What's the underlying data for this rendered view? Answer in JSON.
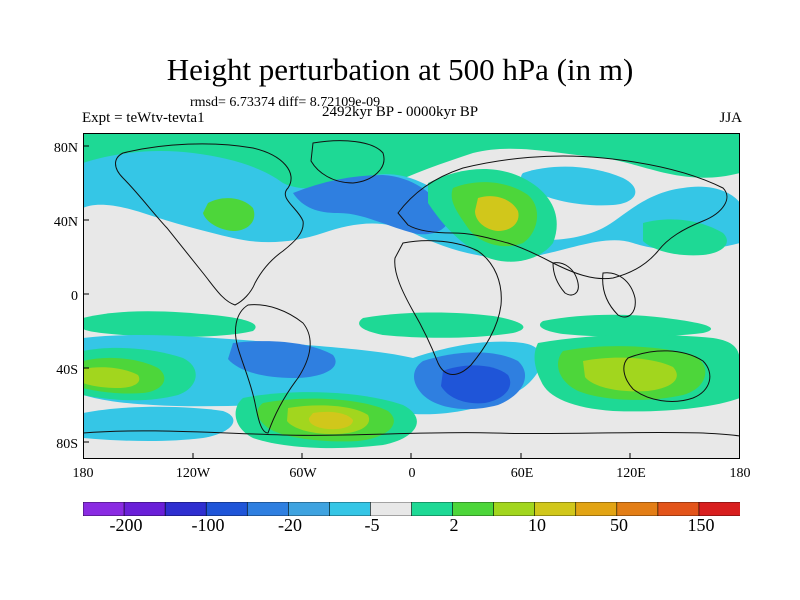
{
  "title": "Height perturbation at 500 hPa (in m)",
  "stats": "rmsd= 6.73374  diff= 8.72109e-09",
  "experiment": "Expt = teWtv-tevta1",
  "period": "2492kyr BP - 0000kyr BP",
  "season": "JJA",
  "axes": {
    "lat_ticks": [
      "80N",
      "40N",
      "0",
      "40S",
      "80S"
    ],
    "lon_ticks": [
      "180",
      "120W",
      "60W",
      "0",
      "60E",
      "120E",
      "180"
    ]
  },
  "colorbar": {
    "colors": [
      "#8a2be2",
      "#6a1fd8",
      "#2f2fd0",
      "#1f55d8",
      "#2f7fe0",
      "#3fa3e0",
      "#35c6e6",
      "#e8e8e8",
      "#1ed995",
      "#4dd63a",
      "#a2d61e",
      "#d1c71b",
      "#e2a414",
      "#e37e16",
      "#e3541a",
      "#d81e1e"
    ],
    "labels": [
      "-200",
      "-100",
      "-20",
      "-5",
      "2",
      "10",
      "50",
      "150"
    ]
  },
  "map_colors": {
    "ocean_bg": "#e8e8e8",
    "weak_neg": "#35c6e6",
    "mid_neg": "#2f7fe0",
    "strong_neg": "#1f55d8",
    "weak_pos": "#1ed995",
    "mid_pos": "#4dd63a",
    "strong_pos": "#a2d61e",
    "peak_pos": "#d1c71b"
  }
}
